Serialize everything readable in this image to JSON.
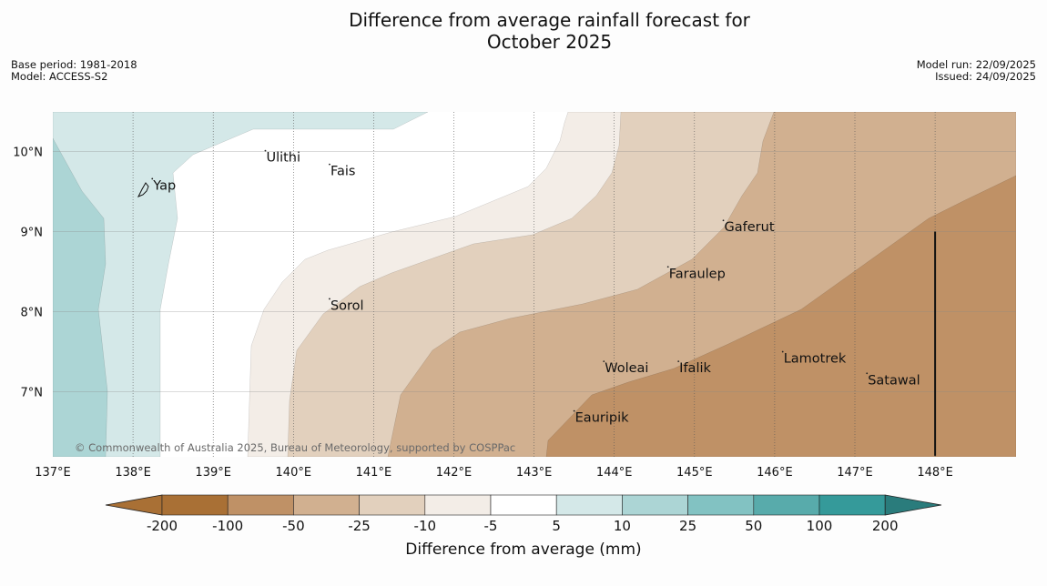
{
  "title_line1": "Difference from average rainfall forecast for",
  "title_line2": "October 2025",
  "meta_left": [
    "Base period: 1981-2018",
    "Model: ACCESS-S2"
  ],
  "meta_right": [
    "Model run: 22/09/2025",
    "Issued: 24/09/2025"
  ],
  "copyright": "© Commonwealth of Australia 2025, Bureau of Meteorology, supported by COSPPac",
  "colors": {
    "n200": "#a97035",
    "n100": "#bf9166",
    "n50": "#d1b090",
    "n25": "#e2d0bd",
    "n10": "#f3ede7",
    "zero": "#ffffff",
    "p5": "#d4e8e8",
    "p10": "#acd5d5",
    "p25": "#82c2c2",
    "p50": "#58abab",
    "p100": "#359a9a",
    "p200": "#2a7c7c"
  },
  "map": {
    "lon_range": [
      137,
      149
    ],
    "lat_range": [
      6.2,
      10.5
    ],
    "lon_ticks": [
      137,
      138,
      139,
      140,
      141,
      142,
      143,
      144,
      145,
      146,
      147,
      148
    ],
    "lon_labels": [
      "137°E",
      "138°E",
      "139°E",
      "140°E",
      "141°E",
      "142°E",
      "143°E",
      "144°E",
      "145°E",
      "146°E",
      "147°E",
      "148°E"
    ],
    "lat_ticks": [
      7,
      8,
      9,
      10
    ],
    "lat_labels": [
      "7°N",
      "8°N",
      "9°N",
      "10°N"
    ],
    "boundary_line": {
      "lon": 148,
      "lat_from": 6.2,
      "lat_to": 9.0
    },
    "places": [
      {
        "name": "Yap",
        "lon": 138.24,
        "lat": 9.58
      },
      {
        "name": "Ulithi",
        "lon": 139.65,
        "lat": 9.93
      },
      {
        "name": "Fais",
        "lon": 140.45,
        "lat": 9.76
      },
      {
        "name": "Gaferut",
        "lon": 145.36,
        "lat": 9.06
      },
      {
        "name": "Faraulep",
        "lon": 144.67,
        "lat": 8.48
      },
      {
        "name": "Sorol",
        "lon": 140.45,
        "lat": 8.08
      },
      {
        "name": "Woleai",
        "lon": 143.87,
        "lat": 7.3
      },
      {
        "name": "Ifalik",
        "lon": 144.8,
        "lat": 7.3
      },
      {
        "name": "Lamotrek",
        "lon": 146.1,
        "lat": 7.42
      },
      {
        "name": "Satawal",
        "lon": 147.15,
        "lat": 7.15
      },
      {
        "name": "Eauripik",
        "lon": 143.5,
        "lat": 6.68
      }
    ]
  },
  "legend": {
    "tick_labels": [
      "-200",
      "-100",
      "-50",
      "-25",
      "-10",
      "-5",
      "5",
      "10",
      "25",
      "50",
      "100",
      "200"
    ],
    "title": "Difference from average (mm)"
  }
}
